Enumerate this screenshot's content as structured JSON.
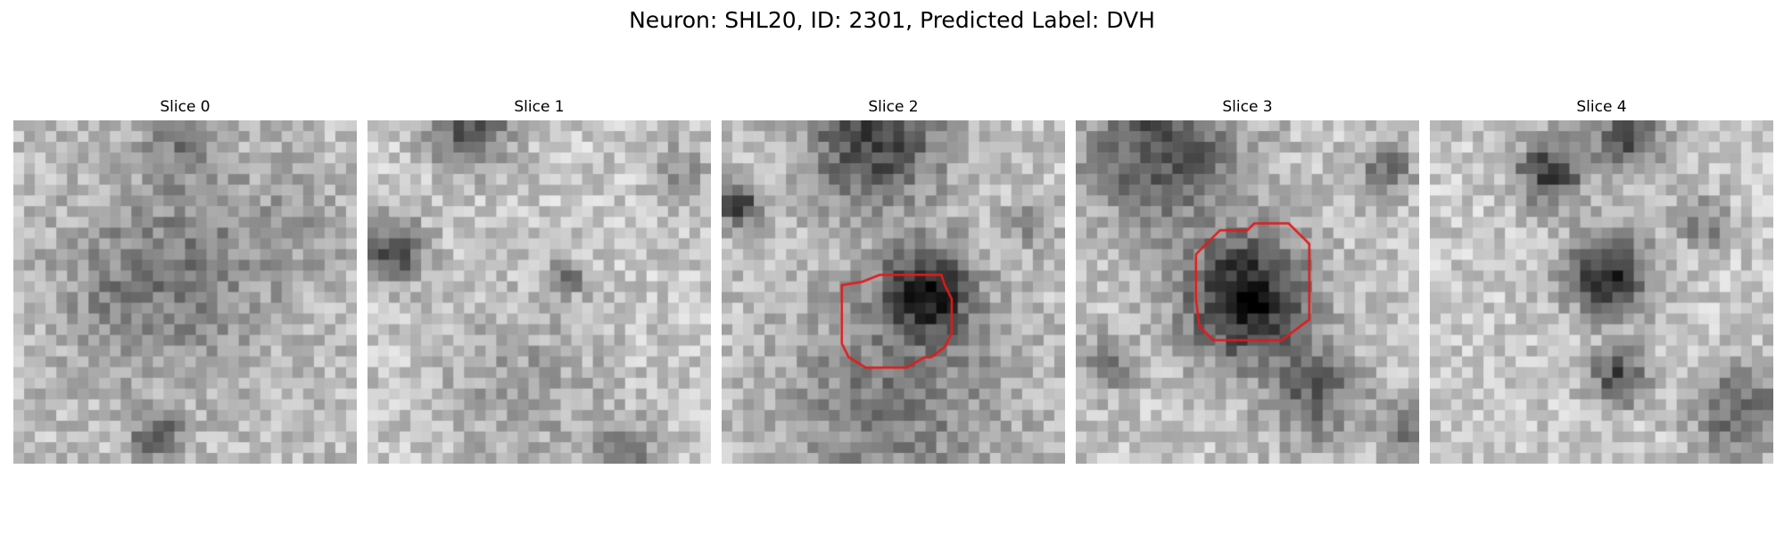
{
  "title": "Neuron: SHL20, ID: 2301, Predicted Label: DVH",
  "contour_color": "#e41a1c",
  "slices": [
    {
      "title": "Slice 0",
      "seed": 11,
      "blobs": [
        [
          0.5,
          0.42,
          0.3,
          -60
        ],
        [
          0.3,
          0.55,
          0.18,
          -30
        ],
        [
          0.48,
          0.05,
          0.1,
          -55
        ],
        [
          0.42,
          0.92,
          0.07,
          -110
        ],
        [
          0.85,
          0.3,
          0.14,
          -20
        ]
      ],
      "base": 190
    },
    {
      "title": "Slice 1",
      "seed": 23,
      "blobs": [
        [
          0.08,
          0.38,
          0.09,
          -130
        ],
        [
          0.3,
          0.02,
          0.12,
          -120
        ],
        [
          0.58,
          0.46,
          0.05,
          -100
        ],
        [
          0.45,
          0.78,
          0.25,
          -40
        ],
        [
          0.9,
          0.15,
          0.08,
          -60
        ],
        [
          0.75,
          0.98,
          0.1,
          -80
        ]
      ],
      "base": 200
    },
    {
      "title": "Slice 2",
      "seed": 37,
      "blobs": [
        [
          0.45,
          0.05,
          0.2,
          -130
        ],
        [
          0.6,
          0.5,
          0.13,
          -150
        ],
        [
          0.05,
          0.25,
          0.06,
          -140
        ],
        [
          0.5,
          0.82,
          0.35,
          -70
        ],
        [
          0.9,
          0.3,
          0.07,
          -60
        ]
      ],
      "base": 195
    },
    {
      "title": "Slice 3",
      "seed": 41,
      "blobs": [
        [
          0.25,
          0.08,
          0.22,
          -120
        ],
        [
          0.5,
          0.52,
          0.18,
          -180
        ],
        [
          0.9,
          0.15,
          0.08,
          -90
        ],
        [
          0.1,
          0.7,
          0.08,
          -80
        ],
        [
          0.7,
          0.8,
          0.14,
          -90
        ],
        [
          0.98,
          0.9,
          0.08,
          -80
        ]
      ],
      "base": 195
    },
    {
      "title": "Slice 4",
      "seed": 53,
      "blobs": [
        [
          0.35,
          0.15,
          0.1,
          -140
        ],
        [
          0.52,
          0.45,
          0.12,
          -160
        ],
        [
          0.8,
          0.3,
          0.08,
          -70
        ],
        [
          0.55,
          0.75,
          0.08,
          -130
        ],
        [
          0.9,
          0.85,
          0.14,
          -100
        ],
        [
          0.58,
          0.05,
          0.1,
          -120
        ]
      ],
      "base": 200
    }
  ],
  "contours": [
    {
      "slice": 2,
      "points": [
        [
          0.35,
          0.48
        ],
        [
          0.41,
          0.47
        ],
        [
          0.46,
          0.45
        ],
        [
          0.64,
          0.45
        ],
        [
          0.65,
          0.48
        ],
        [
          0.67,
          0.52
        ],
        [
          0.67,
          0.62
        ],
        [
          0.65,
          0.66
        ],
        [
          0.61,
          0.69
        ],
        [
          0.59,
          0.69
        ],
        [
          0.54,
          0.72
        ],
        [
          0.42,
          0.72
        ],
        [
          0.37,
          0.69
        ],
        [
          0.35,
          0.65
        ]
      ]
    },
    {
      "slice": 3,
      "points": [
        [
          0.42,
          0.32
        ],
        [
          0.5,
          0.32
        ],
        [
          0.52,
          0.3
        ],
        [
          0.62,
          0.3
        ],
        [
          0.66,
          0.34
        ],
        [
          0.68,
          0.36
        ],
        [
          0.68,
          0.58
        ],
        [
          0.6,
          0.64
        ],
        [
          0.4,
          0.64
        ],
        [
          0.36,
          0.6
        ],
        [
          0.35,
          0.52
        ],
        [
          0.35,
          0.39
        ]
      ]
    }
  ]
}
